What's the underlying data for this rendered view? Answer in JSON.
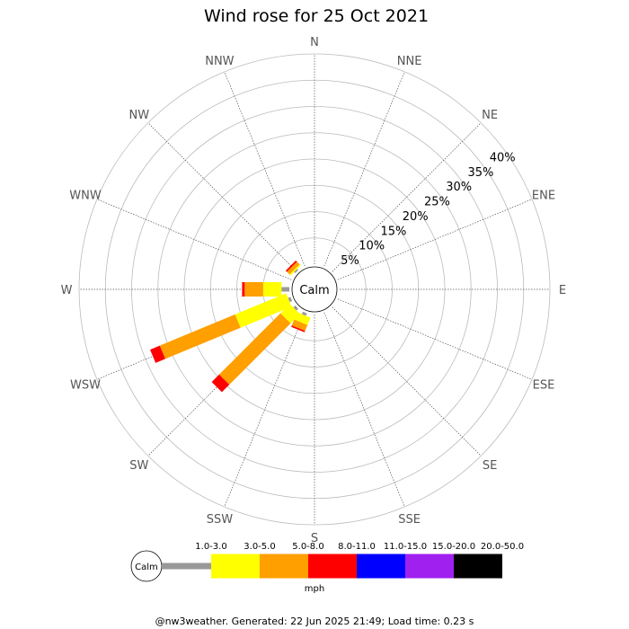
{
  "chart_data": {
    "type": "windrose",
    "title": "Wind rose for 25 Oct 2021",
    "directions": [
      "N",
      "NNE",
      "NE",
      "ENE",
      "E",
      "ESE",
      "SE",
      "SSE",
      "S",
      "SSW",
      "SW",
      "WSW",
      "W",
      "WNW",
      "NW",
      "NNW"
    ],
    "ring_labels": [
      "5%",
      "10%",
      "15%",
      "20%",
      "25%",
      "30%",
      "35%",
      "40%"
    ],
    "rmax": 40,
    "calm_label": "Calm",
    "unit": "mph",
    "bins": [
      {
        "label": "1.0-3.0",
        "color": "#999999"
      },
      {
        "label": "3.0-5.0",
        "color": "#ffff00"
      },
      {
        "label": "5.0-8.0",
        "color": "#ff9f00"
      },
      {
        "label": "8.0-11.0",
        "color": "#ff0000"
      },
      {
        "label": "11.0-15.0",
        "color": "#0000ff"
      },
      {
        "label": "15.0-20.0",
        "color": "#a020f0"
      },
      {
        "label": "20.0-50.0",
        "color": "#000000"
      }
    ],
    "petals": [
      {
        "direction": "SSW",
        "values": [
          0.5,
          1.5,
          1.2,
          0.3,
          0,
          0,
          0
        ]
      },
      {
        "direction": "SW",
        "values": [
          0.5,
          2.5,
          16.5,
          2.0,
          0,
          0,
          0
        ]
      },
      {
        "direction": "WSW",
        "values": [
          0.5,
          10.5,
          15.5,
          2.0,
          0,
          0,
          0
        ]
      },
      {
        "direction": "W",
        "values": [
          1.5,
          3.5,
          3.5,
          0.5,
          0,
          0,
          0
        ]
      },
      {
        "direction": "NW",
        "values": [
          0.3,
          0.3,
          0.7,
          0.3,
          0,
          0,
          0
        ]
      }
    ]
  },
  "footer": "@nw3weather. Generated: 22 Jun 2025 21:49; Load time: 0.23 s"
}
